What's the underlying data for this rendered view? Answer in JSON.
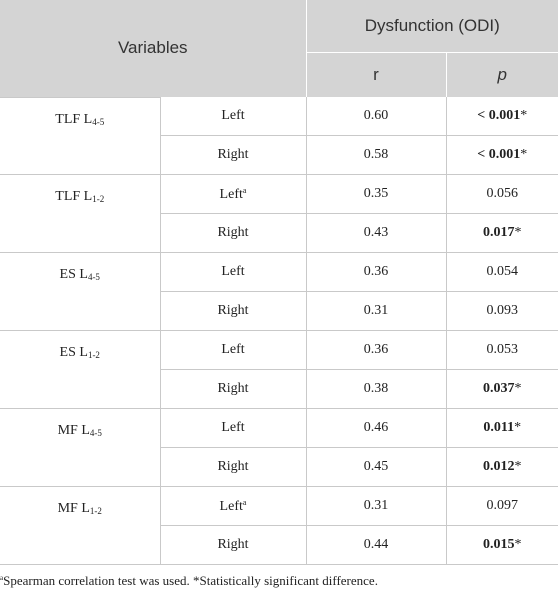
{
  "header": {
    "variables": "Variables",
    "dysfunction": "Dysfunction (ODI)",
    "r": "r",
    "p": "p"
  },
  "groups": [
    {
      "base": "TLF L",
      "sub": "4-5",
      "rows": [
        {
          "side": "Left",
          "side_sup": "",
          "r": "0.60",
          "p": "< 0.001",
          "p_star": "*",
          "bold": true
        },
        {
          "side": "Right",
          "side_sup": "",
          "r": "0.58",
          "p": "< 0.001",
          "p_star": "*",
          "bold": true
        }
      ]
    },
    {
      "base": "TLF L",
      "sub": "1-2",
      "rows": [
        {
          "side": "Left",
          "side_sup": "a",
          "r": "0.35",
          "p": "0.056",
          "p_star": "",
          "bold": false
        },
        {
          "side": "Right",
          "side_sup": "",
          "r": "0.43",
          "p": "0.017",
          "p_star": "*",
          "bold": true
        }
      ]
    },
    {
      "base": "ES L",
      "sub": "4-5",
      "rows": [
        {
          "side": "Left",
          "side_sup": "",
          "r": "0.36",
          "p": "0.054",
          "p_star": "",
          "bold": false
        },
        {
          "side": "Right",
          "side_sup": "",
          "r": "0.31",
          "p": "0.093",
          "p_star": "",
          "bold": false
        }
      ]
    },
    {
      "base": "ES L",
      "sub": "1-2",
      "rows": [
        {
          "side": "Left",
          "side_sup": "",
          "r": "0.36",
          "p": "0.053",
          "p_star": "",
          "bold": false
        },
        {
          "side": "Right",
          "side_sup": "",
          "r": "0.38",
          "p": "0.037",
          "p_star": "*",
          "bold": true
        }
      ]
    },
    {
      "base": "MF L",
      "sub": "4-5",
      "rows": [
        {
          "side": "Left",
          "side_sup": "",
          "r": "0.46",
          "p": "0.011",
          "p_star": "*",
          "bold": true
        },
        {
          "side": "Right",
          "side_sup": "",
          "r": "0.45",
          "p": "0.012",
          "p_star": "*",
          "bold": true
        }
      ]
    },
    {
      "base": "MF L",
      "sub": "1-2",
      "rows": [
        {
          "side": "Left",
          "side_sup": "a",
          "r": "0.31",
          "p": "0.097",
          "p_star": "",
          "bold": false
        },
        {
          "side": "Right",
          "side_sup": "",
          "r": "0.44",
          "p": "0.015",
          "p_star": "*",
          "bold": true
        }
      ]
    }
  ],
  "footnote": {
    "sup": "a",
    "text": "Spearman correlation test was used. *Statistically significant difference."
  }
}
